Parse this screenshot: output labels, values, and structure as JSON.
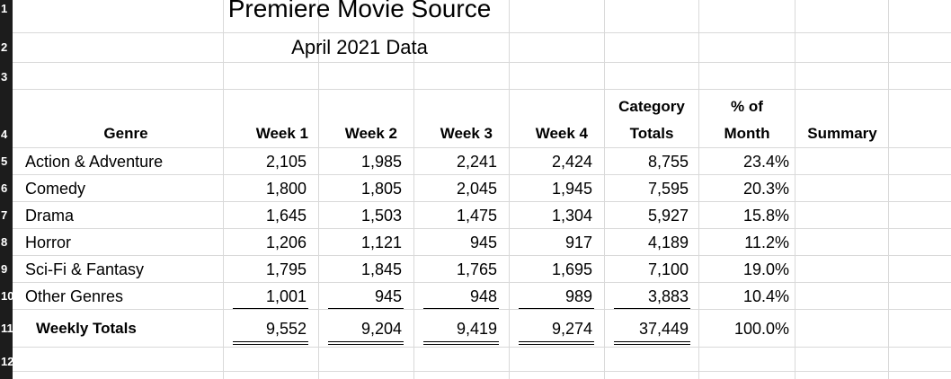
{
  "row_numbers": [
    "1",
    "2",
    "3",
    "4",
    "5",
    "6",
    "7",
    "8",
    "9",
    "10",
    "11",
    "12"
  ],
  "title": "Premiere Movie Source",
  "subtitle": "April 2021 Data",
  "headers": {
    "genre": "Genre",
    "week1": "Week 1",
    "week2": "Week 2",
    "week3": "Week 3",
    "week4": "Week 4",
    "category_top": "Category",
    "category_bottom": "Totals",
    "pct_top": "% of",
    "pct_bottom": "Month",
    "summary": "Summary"
  },
  "rows": [
    {
      "genre": "Action & Adventure",
      "w1": "2,105",
      "w2": "1,985",
      "w3": "2,241",
      "w4": "2,424",
      "total": "8,755",
      "pct": "23.4%"
    },
    {
      "genre": "Comedy",
      "w1": "1,800",
      "w2": "1,805",
      "w3": "2,045",
      "w4": "1,945",
      "total": "7,595",
      "pct": "20.3%"
    },
    {
      "genre": "Drama",
      "w1": "1,645",
      "w2": "1,503",
      "w3": "1,475",
      "w4": "1,304",
      "total": "5,927",
      "pct": "15.8%"
    },
    {
      "genre": "Horror",
      "w1": "1,206",
      "w2": "1,121",
      "w3": "945",
      "w4": "917",
      "total": "4,189",
      "pct": "11.2%"
    },
    {
      "genre": "Sci-Fi & Fantasy",
      "w1": "1,795",
      "w2": "1,845",
      "w3": "1,765",
      "w4": "1,695",
      "total": "7,100",
      "pct": "19.0%"
    },
    {
      "genre": "Other Genres",
      "w1": "1,001",
      "w2": "945",
      "w3": "948",
      "w4": "989",
      "total": "3,883",
      "pct": "10.4%"
    }
  ],
  "totals": {
    "label": "Weekly Totals",
    "w1": "9,552",
    "w2": "9,204",
    "w3": "9,419",
    "w4": "9,274",
    "total": "37,449",
    "pct": "100.0%"
  }
}
